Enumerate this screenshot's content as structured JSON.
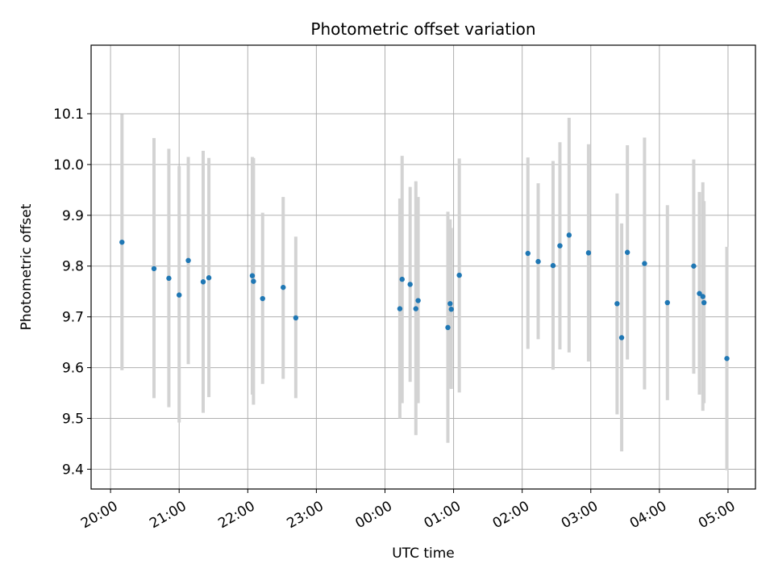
{
  "chart_data": {
    "type": "scatter",
    "title": "Photometric offset variation",
    "xlabel": "UTC time",
    "ylabel": "Photometric offset",
    "x_axis_kind": "time",
    "x_ticks": [
      "20:00",
      "21:00",
      "22:00",
      "23:00",
      "00:00",
      "01:00",
      "02:00",
      "03:00",
      "04:00",
      "05:00"
    ],
    "xlim": [
      "19:43",
      "05:24"
    ],
    "y_ticks": [
      "9.4",
      "9.5",
      "9.6",
      "9.7",
      "9.8",
      "9.9",
      "10.0",
      "10.1"
    ],
    "ylim": [
      9.361,
      10.235
    ],
    "grid": true,
    "point_color": "#1f77b4",
    "errorbar_color": "#d3d3d3",
    "series": [
      {
        "points": [
          {
            "t": "20:10",
            "y": 9.847,
            "lo": 9.595,
            "hi": 10.099
          },
          {
            "t": "20:38",
            "y": 9.795,
            "lo": 9.54,
            "hi": 10.052
          },
          {
            "t": "20:51",
            "y": 9.776,
            "lo": 9.522,
            "hi": 10.031
          },
          {
            "t": "21:00",
            "y": 9.743,
            "lo": 9.492,
            "hi": 9.997
          },
          {
            "t": "21:08",
            "y": 9.811,
            "lo": 9.607,
            "hi": 10.015
          },
          {
            "t": "21:21",
            "y": 9.769,
            "lo": 9.511,
            "hi": 10.027
          },
          {
            "t": "21:26",
            "y": 9.777,
            "lo": 9.542,
            "hi": 10.013
          },
          {
            "t": "22:04",
            "y": 9.781,
            "lo": 9.547,
            "hi": 10.015
          },
          {
            "t": "22:05",
            "y": 9.77,
            "lo": 9.527,
            "hi": 10.013
          },
          {
            "t": "22:13",
            "y": 9.736,
            "lo": 9.568,
            "hi": 9.905
          },
          {
            "t": "22:31",
            "y": 9.758,
            "lo": 9.578,
            "hi": 9.936
          },
          {
            "t": "22:42",
            "y": 9.698,
            "lo": 9.54,
            "hi": 9.858
          },
          {
            "t": "00:13",
            "y": 9.716,
            "lo": 9.5,
            "hi": 9.933
          },
          {
            "t": "00:15",
            "y": 9.774,
            "lo": 9.53,
            "hi": 10.017
          },
          {
            "t": "00:22",
            "y": 9.764,
            "lo": 9.572,
            "hi": 9.956
          },
          {
            "t": "00:27",
            "y": 9.716,
            "lo": 9.467,
            "hi": 9.967
          },
          {
            "t": "00:29",
            "y": 9.732,
            "lo": 9.53,
            "hi": 9.936
          },
          {
            "t": "00:55",
            "y": 9.679,
            "lo": 9.452,
            "hi": 9.907
          },
          {
            "t": "00:57",
            "y": 9.726,
            "lo": 9.559,
            "hi": 9.892
          },
          {
            "t": "00:58",
            "y": 9.715,
            "lo": 9.558,
            "hi": 9.875
          },
          {
            "t": "01:05",
            "y": 9.782,
            "lo": 9.551,
            "hi": 10.012
          },
          {
            "t": "02:05",
            "y": 9.825,
            "lo": 9.637,
            "hi": 10.014
          },
          {
            "t": "02:14",
            "y": 9.809,
            "lo": 9.656,
            "hi": 9.963
          },
          {
            "t": "02:27",
            "y": 9.801,
            "lo": 9.596,
            "hi": 10.007
          },
          {
            "t": "02:33",
            "y": 9.84,
            "lo": 9.636,
            "hi": 10.044
          },
          {
            "t": "02:41",
            "y": 9.861,
            "lo": 9.63,
            "hi": 10.092
          },
          {
            "t": "02:58",
            "y": 9.826,
            "lo": 9.612,
            "hi": 10.04
          },
          {
            "t": "03:23",
            "y": 9.726,
            "lo": 9.508,
            "hi": 9.943
          },
          {
            "t": "03:27",
            "y": 9.659,
            "lo": 9.435,
            "hi": 9.884
          },
          {
            "t": "03:32",
            "y": 9.827,
            "lo": 9.616,
            "hi": 10.038
          },
          {
            "t": "03:47",
            "y": 9.805,
            "lo": 9.557,
            "hi": 10.053
          },
          {
            "t": "04:07",
            "y": 9.728,
            "lo": 9.536,
            "hi": 9.92
          },
          {
            "t": "04:30",
            "y": 9.8,
            "lo": 9.588,
            "hi": 10.01
          },
          {
            "t": "04:35",
            "y": 9.746,
            "lo": 9.547,
            "hi": 9.946
          },
          {
            "t": "04:38",
            "y": 9.74,
            "lo": 9.515,
            "hi": 9.965
          },
          {
            "t": "04:39",
            "y": 9.728,
            "lo": 9.53,
            "hi": 9.928
          },
          {
            "t": "04:59",
            "y": 9.618,
            "lo": 9.398,
            "hi": 9.838
          }
        ]
      }
    ]
  }
}
